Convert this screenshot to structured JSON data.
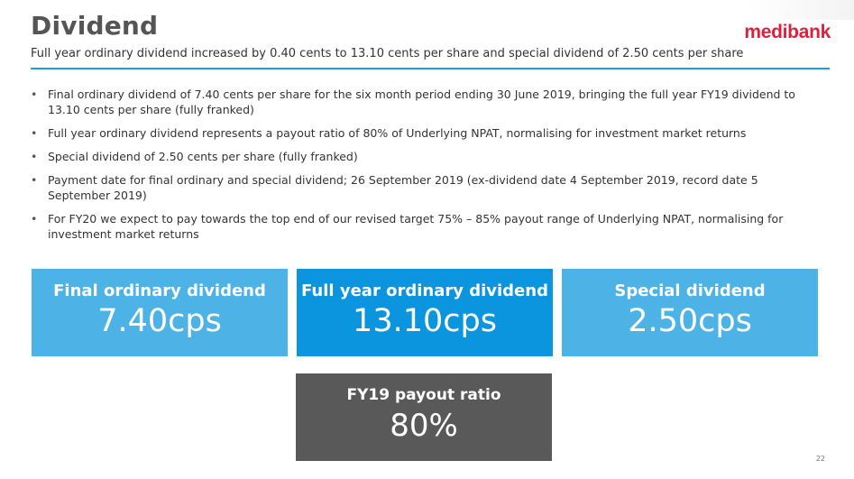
{
  "slide": {
    "title": "Dividend",
    "subtitle": "Full year ordinary dividend increased by 0.40 cents to 13.10 cents per share and special dividend of 2.50 cents per share",
    "logo": "medibank",
    "page_number": "22",
    "bullet_char": "•",
    "bullets": [
      "Final ordinary dividend of 7.40 cents per share for the six month period ending 30 June 2019, bringing the full year FY19 dividend to 13.10 cents per share (fully franked)",
      "Full year ordinary dividend represents a payout ratio of 80% of Underlying NPAT, normalising for investment market returns",
      "Special dividend of 2.50 cents per share (fully franked)",
      "Payment date for final ordinary and special dividend; 26 September 2019 (ex-dividend date 4 September 2019, record date 5 September 2019)",
      "For FY20 we expect to pay towards the top end of our revised target 75% – 85% payout range of Underlying NPAT, normalising for investment market returns"
    ]
  },
  "highlights": [
    {
      "label": "Final ordinary dividend",
      "value": "7.40cps",
      "color": "#4db3e6"
    },
    {
      "label": "Full year ordinary dividend",
      "value": "13.10cps",
      "color": "#0b95de"
    },
    {
      "label": "Special dividend",
      "value": "2.50cps",
      "color": "#4db3e6"
    },
    {
      "label": "FY19 payout ratio",
      "value": "80%",
      "color": "#595959"
    }
  ],
  "colors": {
    "accent": "#1a9de0",
    "brand": "#e01f3d",
    "title": "#555555"
  }
}
